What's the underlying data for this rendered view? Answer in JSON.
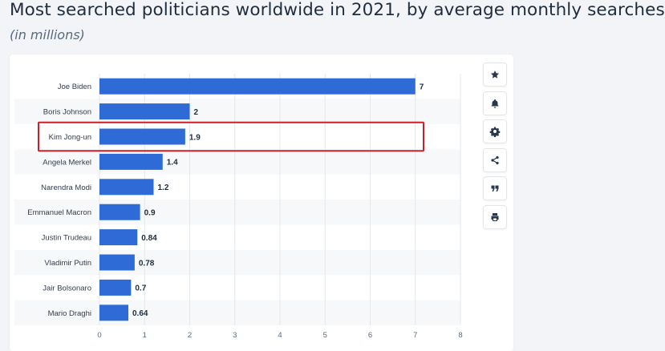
{
  "header": {
    "title": "Most searched politicians worldwide in 2021, by average monthly searches",
    "subtitle": "(in millions)"
  },
  "toolbar": {
    "buttons": [
      {
        "icon": "star-icon"
      },
      {
        "icon": "bell-icon"
      },
      {
        "icon": "gear-icon"
      },
      {
        "icon": "share-icon"
      },
      {
        "icon": "quote-icon"
      },
      {
        "icon": "print-icon"
      }
    ]
  },
  "colors": {
    "bar": "#2e6bd6",
    "highlight": "#cc1f2a",
    "band": "#f7f8fa",
    "grid": "#e4e7eb",
    "icon": "#27384d"
  },
  "chart_data": {
    "type": "bar",
    "orientation": "horizontal",
    "categories": [
      "Joe Biden",
      "Boris Johnson",
      "Kim Jong-un",
      "Angela Merkel",
      "Narendra Modi",
      "Emmanuel Macron",
      "Justin Trudeau",
      "Vladimir Putin",
      "Jair Bolsonaro",
      "Mario Draghi"
    ],
    "values": [
      7,
      2,
      1.9,
      1.4,
      1.2,
      0.9,
      0.84,
      0.78,
      0.7,
      0.64
    ],
    "value_labels": [
      "7",
      "2",
      "1.9",
      "1.4",
      "1.2",
      "0.9",
      "0.84",
      "0.78",
      "0.7",
      "0.64"
    ],
    "xlim": [
      0,
      8
    ],
    "xticks": [
      "0",
      "1",
      "2",
      "3",
      "4",
      "5",
      "6",
      "7",
      "8"
    ],
    "highlighted_category": "Kim Jong-un",
    "grid": true
  }
}
